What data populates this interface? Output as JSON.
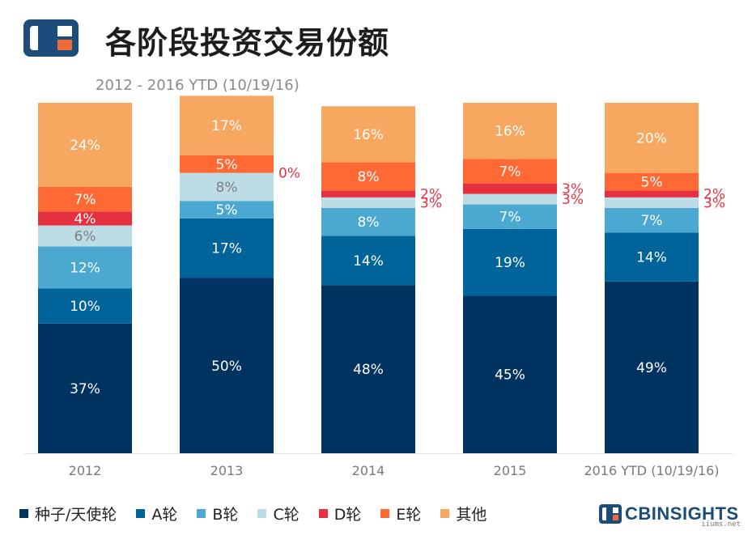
{
  "header": {
    "title": "各阶段投资交易份额",
    "subtitle": "2012 - 2016 YTD (10/19/16)"
  },
  "brand": {
    "name": "CBINSIGHTS",
    "cb": "CB",
    "insights": "INSIGHTS",
    "color": "#1c4d7a",
    "accent": "#ef6a37"
  },
  "watermark": "iiums.net",
  "chart_data": {
    "type": "bar",
    "stacked": true,
    "percent_stacked": true,
    "categories": [
      "2012",
      "2013",
      "2014",
      "2015",
      "2016 YTD (10/19/16)"
    ],
    "series": [
      {
        "name": "种子/天使轮",
        "color": "#00335f",
        "values": [
          37,
          50,
          48,
          45,
          49
        ]
      },
      {
        "name": "A轮",
        "color": "#00639a",
        "values": [
          10,
          17,
          14,
          19,
          14
        ]
      },
      {
        "name": "B轮",
        "color": "#4ba9d1",
        "values": [
          12,
          5,
          8,
          7,
          7
        ]
      },
      {
        "name": "C轮",
        "color": "#bddde6",
        "values": [
          6,
          8,
          3,
          3,
          3
        ]
      },
      {
        "name": "D轮",
        "color": "#e6303f",
        "values": [
          4,
          0,
          2,
          3,
          2
        ]
      },
      {
        "name": "E轮",
        "color": "#ff6a34",
        "values": [
          7,
          5,
          8,
          7,
          5
        ]
      },
      {
        "name": "其他",
        "color": "#f7a760",
        "values": [
          24,
          17,
          16,
          16,
          20
        ]
      }
    ],
    "label_suffix": "%",
    "ylim": [
      0,
      100
    ],
    "legend_position": "bottom",
    "grid": false
  }
}
